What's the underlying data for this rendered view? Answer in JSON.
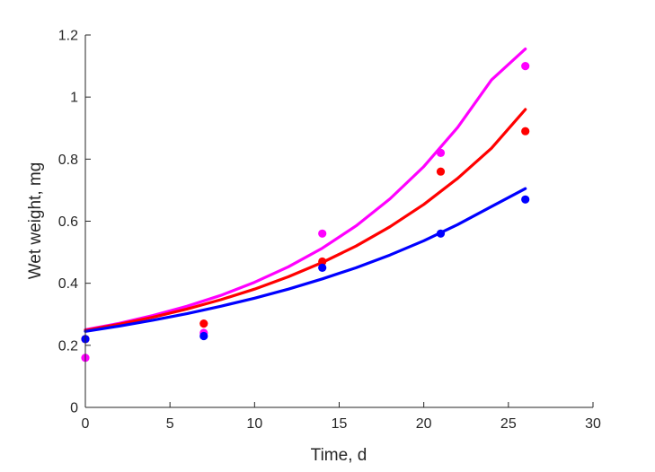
{
  "chart_data": {
    "type": "scatter",
    "title": "",
    "xlabel": "Time, d",
    "ylabel": "Wet weight, mg",
    "xlim": [
      0,
      30
    ],
    "ylim": [
      0,
      1.2
    ],
    "xticks": [
      0,
      5,
      10,
      15,
      20,
      25,
      30
    ],
    "yticks": [
      0,
      0.2,
      0.4,
      0.6,
      0.8,
      1,
      1.2
    ],
    "xtick_labels": [
      "0",
      "5",
      "10",
      "15",
      "20",
      "25",
      "30"
    ],
    "ytick_labels": [
      "0",
      "0.2",
      "0.4",
      "0.6",
      "0.8",
      "1",
      "1.2"
    ],
    "grid": false,
    "legend": "none",
    "series": [
      {
        "color": "#ff00ff",
        "points": {
          "x": [
            0,
            7,
            14,
            21,
            26
          ],
          "y": [
            0.16,
            0.24,
            0.56,
            0.82,
            1.1
          ]
        },
        "fit": {
          "x": [
            0,
            2,
            4,
            6,
            8,
            10,
            12,
            14,
            16,
            18,
            20,
            22,
            24,
            26
          ],
          "y": [
            0.25,
            0.271,
            0.296,
            0.326,
            0.361,
            0.403,
            0.453,
            0.513,
            0.585,
            0.672,
            0.776,
            0.902,
            1.055,
            1.155
          ]
        }
      },
      {
        "color": "#ff0000",
        "points": {
          "x": [
            0,
            7,
            14,
            21,
            26
          ],
          "y": [
            0.22,
            0.27,
            0.47,
            0.76,
            0.89
          ]
        },
        "fit": {
          "x": [
            0,
            2,
            4,
            6,
            8,
            10,
            12,
            14,
            16,
            18,
            20,
            22,
            24,
            26
          ],
          "y": [
            0.248,
            0.268,
            0.291,
            0.317,
            0.347,
            0.381,
            0.421,
            0.467,
            0.52,
            0.582,
            0.654,
            0.738,
            0.835,
            0.96
          ]
        }
      },
      {
        "color": "#0000ff",
        "points": {
          "x": [
            0,
            7,
            14,
            21,
            26
          ],
          "y": [
            0.22,
            0.23,
            0.45,
            0.56,
            0.67
          ]
        },
        "fit": {
          "x": [
            0,
            2,
            4,
            6,
            8,
            10,
            12,
            14,
            16,
            18,
            20,
            22,
            24,
            26
          ],
          "y": [
            0.245,
            0.262,
            0.281,
            0.302,
            0.326,
            0.352,
            0.381,
            0.414,
            0.45,
            0.491,
            0.537,
            0.589,
            0.647,
            0.705
          ]
        }
      }
    ]
  }
}
